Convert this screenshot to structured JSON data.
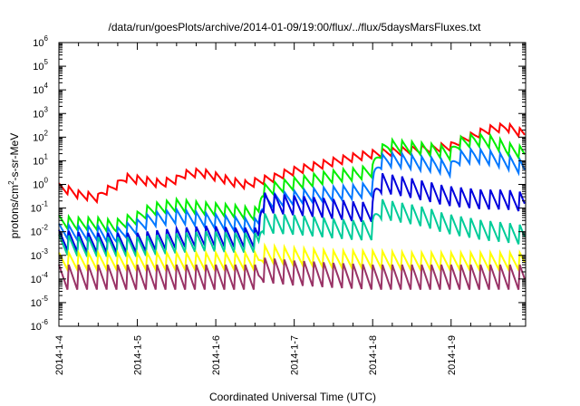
{
  "chart_data": {
    "type": "line",
    "title": "/data/run/goesPlots/archive/2014-01-09/19:00/flux/../flux/5daysMarsFluxes.txt",
    "xlabel": "Coordinated Universal Time (UTC)",
    "ylabel": {
      "prefix": "protons/cm",
      "sup": "2",
      "suffix": "-s-sr-MeV"
    },
    "y_scale": "log",
    "ylim_exponents": [
      -6,
      6
    ],
    "y_tick_labels": [
      {
        "base": "10",
        "exp": "-6"
      },
      {
        "base": "10",
        "exp": "-5"
      },
      {
        "base": "10",
        "exp": "-4"
      },
      {
        "base": "10",
        "exp": "-3"
      },
      {
        "base": "10",
        "exp": "-2"
      },
      {
        "base": "10",
        "exp": "-1"
      },
      {
        "base": "10",
        "exp": "0"
      },
      {
        "base": "10",
        "exp": "1"
      },
      {
        "base": "10",
        "exp": "2"
      },
      {
        "base": "10",
        "exp": "3"
      },
      {
        "base": "10",
        "exp": "4"
      },
      {
        "base": "10",
        "exp": "5"
      },
      {
        "base": "10",
        "exp": "6"
      }
    ],
    "x_ticks": [
      "2014-1-4",
      "2014-1-5",
      "2014-1-6",
      "2014-1-7",
      "2014-1-8",
      "2014-1-9"
    ],
    "x_range_days": [
      0,
      5.95
    ],
    "grid": false,
    "legend": "none",
    "series": [
      {
        "color": "#ff0000",
        "x": [
          0,
          0.25,
          0.5,
          0.55,
          0.65,
          0.75,
          0.85,
          1.0,
          1.3,
          1.5,
          1.6,
          1.8,
          2.0,
          2.2,
          2.4,
          2.55,
          2.75,
          3.0,
          3.2,
          3.4,
          3.6,
          3.8,
          4.0,
          4.2,
          4.4,
          4.6,
          4.8,
          5.0,
          5.1,
          5.3,
          5.5,
          5.7,
          5.85,
          5.95
        ],
        "y": [
          0.7,
          0.35,
          0.25,
          0.4,
          0.6,
          0.9,
          1.8,
          1.5,
          1.0,
          1.5,
          2.5,
          3.0,
          2.0,
          1.2,
          0.9,
          1.3,
          1.8,
          3.5,
          5,
          7,
          10,
          14,
          18,
          22,
          25,
          28,
          32,
          38,
          60,
          110,
          200,
          250,
          160,
          120
        ],
        "amp": [
          1.6,
          1.6,
          1.6,
          1.6,
          1.6,
          1.6,
          1.6,
          1.6,
          1.6,
          1.6,
          1.6,
          1.6,
          1.6,
          1.6,
          1.6,
          1.6,
          1.6,
          1.6,
          1.6,
          1.6,
          1.6,
          1.6,
          1.6,
          1.6,
          1.6,
          1.6,
          1.6,
          1.6,
          1.6,
          1.6,
          1.6,
          1.6,
          1.6,
          1.6
        ]
      },
      {
        "color": "#00ee00",
        "x": [
          0,
          0.2,
          0.5,
          0.7,
          0.8,
          1.0,
          1.2,
          1.5,
          1.8,
          2.0,
          2.2,
          2.35,
          2.45,
          2.55,
          2.6,
          2.8,
          3.0,
          3.2,
          3.4,
          3.6,
          3.8,
          4.0,
          4.1,
          4.2,
          4.4,
          4.6,
          4.8,
          5.0,
          5.1,
          5.3,
          5.5,
          5.7,
          5.95
        ],
        "y": [
          0.025,
          0.02,
          0.02,
          0.015,
          0.02,
          0.035,
          0.08,
          0.12,
          0.09,
          0.08,
          0.07,
          0.06,
          0.05,
          0.06,
          0.5,
          0.7,
          1.0,
          1.3,
          1.8,
          2.2,
          2.5,
          3.5,
          20,
          40,
          35,
          30,
          25,
          18,
          50,
          70,
          60,
          30,
          18
        ],
        "amp": [
          2.0,
          2.0,
          2.0,
          2.0,
          2.0,
          2.0,
          2.0,
          2.0,
          2.0,
          2.0,
          2.0,
          2.0,
          2.0,
          2.0,
          2.0,
          2.0,
          2.0,
          2.0,
          2.0,
          2.0,
          2.0,
          2.0,
          2.0,
          2.0,
          2.0,
          2.0,
          2.0,
          2.0,
          2.0,
          2.0,
          2.0,
          2.0,
          2.0
        ]
      },
      {
        "color": "#0077ff",
        "x": [
          0,
          0.2,
          0.5,
          0.7,
          0.8,
          1.0,
          1.2,
          1.5,
          1.8,
          2.0,
          2.2,
          2.35,
          2.45,
          2.55,
          2.6,
          2.8,
          3.0,
          3.2,
          3.4,
          3.6,
          3.8,
          4.0,
          4.1,
          4.2,
          4.4,
          4.6,
          4.8,
          5.0,
          5.1,
          5.3,
          5.5,
          5.7,
          5.95
        ],
        "y": [
          0.01,
          0.008,
          0.008,
          0.006,
          0.008,
          0.015,
          0.03,
          0.04,
          0.03,
          0.025,
          0.02,
          0.018,
          0.015,
          0.018,
          0.15,
          0.2,
          0.25,
          0.3,
          0.35,
          0.4,
          0.45,
          0.6,
          8,
          10,
          9,
          7,
          6,
          4,
          12,
          15,
          12,
          8,
          4
        ],
        "amp": [
          2.2,
          2.2,
          2.2,
          2.2,
          2.2,
          2.2,
          2.2,
          2.2,
          2.2,
          2.2,
          2.2,
          2.2,
          2.2,
          2.2,
          2.2,
          2.2,
          2.2,
          2.2,
          2.2,
          2.2,
          2.2,
          2.2,
          2.2,
          2.2,
          2.2,
          2.2,
          2.2,
          2.2,
          2.2,
          2.2,
          2.2,
          2.2,
          2.2
        ]
      },
      {
        "color": "#0000dd",
        "x": [
          0,
          0.3,
          0.7,
          1.0,
          1.3,
          1.6,
          1.9,
          2.2,
          2.45,
          2.55,
          2.6,
          2.9,
          3.2,
          3.5,
          3.8,
          4.0,
          4.1,
          4.3,
          4.6,
          4.9,
          5.1,
          5.4,
          5.7,
          5.95
        ],
        "y": [
          0.004,
          0.003,
          0.003,
          0.003,
          0.004,
          0.005,
          0.006,
          0.005,
          0.005,
          0.005,
          0.15,
          0.12,
          0.1,
          0.08,
          0.06,
          0.06,
          1.0,
          0.8,
          0.5,
          0.3,
          0.25,
          0.2,
          0.2,
          0.15
        ],
        "amp": [
          3.0,
          3.0,
          3.0,
          3.0,
          3.0,
          3.0,
          3.0,
          3.0,
          3.0,
          3.0,
          3.0,
          3.0,
          3.0,
          3.0,
          3.0,
          3.0,
          3.0,
          3.0,
          3.0,
          3.0,
          3.0,
          3.0,
          3.0,
          3.0
        ]
      },
      {
        "color": "#00cc99",
        "x": [
          0,
          0.3,
          0.7,
          1.0,
          1.3,
          1.6,
          1.9,
          2.2,
          2.45,
          2.55,
          2.6,
          2.9,
          3.2,
          3.5,
          3.8,
          4.0,
          4.1,
          4.3,
          4.6,
          4.9,
          5.1,
          5.4,
          5.7,
          5.95
        ],
        "y": [
          0.0025,
          0.002,
          0.002,
          0.002,
          0.0025,
          0.003,
          0.0035,
          0.003,
          0.003,
          0.003,
          0.02,
          0.018,
          0.015,
          0.012,
          0.01,
          0.01,
          0.08,
          0.06,
          0.04,
          0.02,
          0.015,
          0.01,
          0.008,
          0.006
        ],
        "amp": [
          3.0,
          3.0,
          3.0,
          3.0,
          3.0,
          3.0,
          3.0,
          3.0,
          3.0,
          3.0,
          3.0,
          3.0,
          3.0,
          3.0,
          3.0,
          3.0,
          3.0,
          3.0,
          3.0,
          3.0,
          3.0,
          3.0,
          3.0,
          3.0
        ]
      },
      {
        "color": "#ffff00",
        "x": [
          0,
          0.5,
          1.0,
          1.5,
          2.0,
          2.45,
          2.55,
          2.6,
          3.0,
          3.5,
          4.0,
          4.5,
          5.0,
          5.5,
          5.95
        ],
        "y": [
          0.0005,
          0.0005,
          0.0005,
          0.0005,
          0.0005,
          0.0005,
          0.0005,
          0.001,
          0.0008,
          0.0006,
          0.0006,
          0.0005,
          0.0005,
          0.0005,
          0.0005
        ],
        "amp": [
          2.6,
          2.6,
          2.6,
          2.6,
          2.6,
          2.6,
          2.6,
          2.6,
          2.6,
          2.6,
          2.6,
          2.6,
          2.6,
          2.6,
          2.6
        ]
      },
      {
        "color": "#993366",
        "x": [
          0,
          0.5,
          1.0,
          1.5,
          2.0,
          2.45,
          2.55,
          2.6,
          3.0,
          3.5,
          4.0,
          4.5,
          5.0,
          5.5,
          5.95
        ],
        "y": [
          0.0001,
          0.0001,
          0.0001,
          0.0001,
          0.0001,
          0.0001,
          0.0001,
          0.0002,
          0.00015,
          0.00012,
          0.0001,
          0.0001,
          0.0001,
          0.0001,
          0.0001
        ],
        "amp": [
          4.0,
          4.0,
          4.0,
          4.0,
          4.0,
          4.0,
          4.0,
          4.0,
          4.0,
          4.0,
          4.0,
          4.0,
          4.0,
          4.0,
          4.0
        ]
      }
    ],
    "sawtooth_period_days": 0.125
  }
}
